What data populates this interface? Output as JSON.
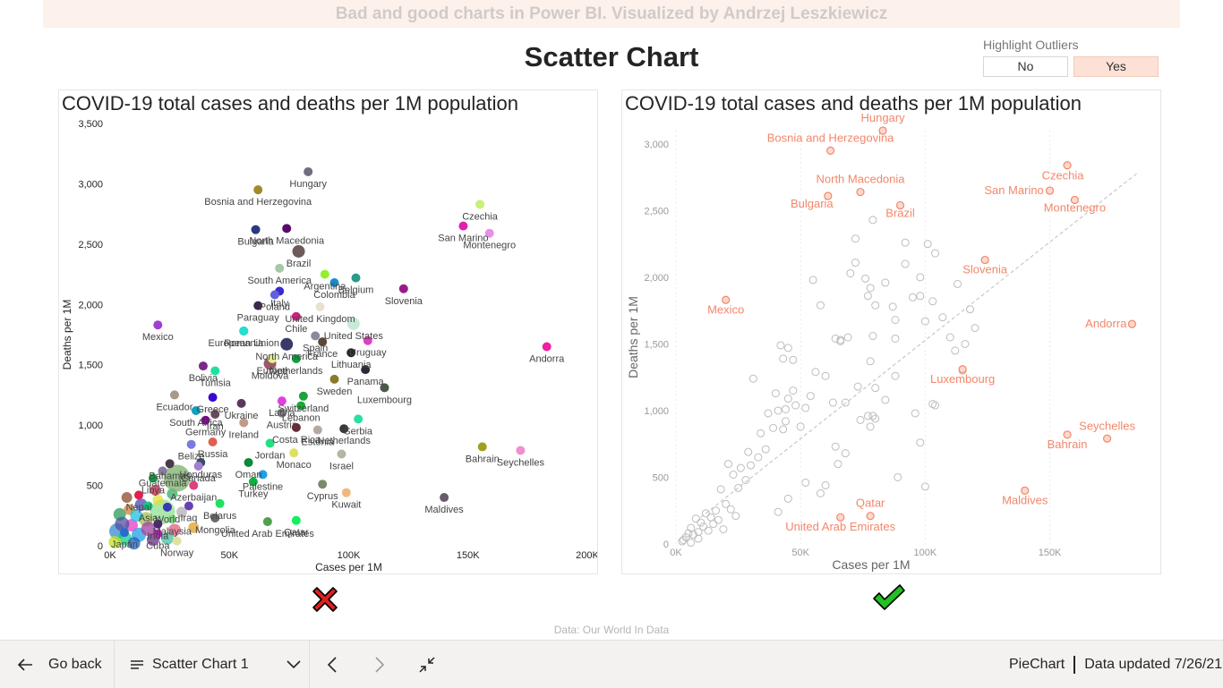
{
  "header": {
    "banner": "Bad and good charts in Power BI. Visualized by Andrzej Leszkiewicz",
    "title": "Scatter Chart"
  },
  "slicer": {
    "label": "Highlight Outliers",
    "options": [
      "No",
      "Yes"
    ],
    "selected": "Yes"
  },
  "colors": {
    "highlight": "#f2876a",
    "muted": "#bdbdbd",
    "bad_mark": "#e02020",
    "good_mark": "#22c022",
    "slicer_active": "#fde1d6"
  },
  "chart_data": [
    {
      "type": "scatter",
      "title": "COVID-19 total cases and deaths per 1M population",
      "xlabel": "Cases per 1M",
      "ylabel": "Deaths per 1M",
      "xlim": [
        0,
        200000
      ],
      "ylim": [
        0,
        3500
      ],
      "xticks": [
        "0K",
        "50K",
        "100K",
        "150K",
        "200K"
      ],
      "yticks": [
        "0",
        "500",
        "1,000",
        "1,500",
        "2,000",
        "2,500",
        "3,000",
        "3,500"
      ],
      "points": [
        {
          "label": "Hungary",
          "x": 83000,
          "y": 3100,
          "color": "#6e6e7e"
        },
        {
          "label": "Bosnia and Herzegovina",
          "x": 62000,
          "y": 2950,
          "color": "#a08a2a"
        },
        {
          "label": "North Macedonia",
          "x": 74000,
          "y": 2630,
          "color": "#5a0a6a"
        },
        {
          "label": "Bulgaria",
          "x": 61000,
          "y": 2620,
          "color": "#2a3a7a"
        },
        {
          "label": "Brazil",
          "x": 79000,
          "y": 2440,
          "color": "#6e5a5a"
        },
        {
          "label": "Czechia",
          "x": 155000,
          "y": 2830,
          "color": "#c8f07a"
        },
        {
          "label": "San Marino",
          "x": 148000,
          "y": 2650,
          "color": "#e020b0"
        },
        {
          "label": "Montenegro",
          "x": 159000,
          "y": 2590,
          "color": "#e890e8"
        },
        {
          "label": "South America",
          "x": 71000,
          "y": 2300,
          "color": "#a8c8a8"
        },
        {
          "label": "Argentina",
          "x": 90000,
          "y": 2250,
          "color": "#90f030"
        },
        {
          "label": "Colombia",
          "x": 94000,
          "y": 2180,
          "color": "#1a8ad0"
        },
        {
          "label": "Belgium",
          "x": 103000,
          "y": 2220,
          "color": "#2a9a8a"
        },
        {
          "label": "Italy",
          "x": 71000,
          "y": 2110,
          "color": "#3a2ad0"
        },
        {
          "label": "Slovenia",
          "x": 123000,
          "y": 2130,
          "color": "#9a1a8a"
        },
        {
          "label": "Poland",
          "x": 69000,
          "y": 2080,
          "color": "#6060e0"
        },
        {
          "label": "Paraguay",
          "x": 62000,
          "y": 1990,
          "color": "#3a2a4a"
        },
        {
          "label": "United Kingdom",
          "x": 88000,
          "y": 1980,
          "color": "#e8e0d0"
        },
        {
          "label": "Mexico",
          "x": 20000,
          "y": 1830,
          "color": "#a040d0"
        },
        {
          "label": "Romania",
          "x": 56000,
          "y": 1780,
          "color": "#a02070"
        },
        {
          "label": "Chile",
          "x": 78000,
          "y": 1900,
          "color": "#d02080"
        },
        {
          "label": "Spain",
          "x": 86000,
          "y": 1740,
          "color": "#8a8a9a"
        },
        {
          "label": "United States",
          "x": 102000,
          "y": 1840,
          "color": "#c8e8d8"
        },
        {
          "label": "European Union",
          "x": 56000,
          "y": 1780,
          "color": "#20e0d0"
        },
        {
          "label": "North America",
          "x": 74000,
          "y": 1670,
          "color": "#3a3a6a"
        },
        {
          "label": "Uruguay",
          "x": 108000,
          "y": 1700,
          "color": "#e040c0"
        },
        {
          "label": "France",
          "x": 89000,
          "y": 1690,
          "color": "#5a4a3a"
        },
        {
          "label": "Lithuania",
          "x": 101000,
          "y": 1600,
          "color": "#2a2a2a"
        },
        {
          "label": "Andorra",
          "x": 183000,
          "y": 1650,
          "color": "#f020a0"
        },
        {
          "label": "Bolivia",
          "x": 39000,
          "y": 1490,
          "color": "#7a2a8a"
        },
        {
          "label": "Moldova",
          "x": 67000,
          "y": 1510,
          "color": "#9a5a6a"
        },
        {
          "label": "Europe",
          "x": 68000,
          "y": 1550,
          "color": "#e0f090"
        },
        {
          "label": "Netherlands",
          "x": 78000,
          "y": 1550,
          "color": "#10a040"
        },
        {
          "label": "Panama",
          "x": 107000,
          "y": 1460,
          "color": "#2a2a3a"
        },
        {
          "label": "Sweden",
          "x": 94000,
          "y": 1380,
          "color": "#8a7a2a"
        },
        {
          "label": "Tunisia",
          "x": 44000,
          "y": 1450,
          "color": "#20e0a0"
        },
        {
          "label": "Luxembourg",
          "x": 115000,
          "y": 1310,
          "color": "#4a5a4a"
        },
        {
          "label": "Ecuador",
          "x": 27000,
          "y": 1250,
          "color": "#a89a8a"
        },
        {
          "label": "Greece",
          "x": 43000,
          "y": 1230,
          "color": "#3a0ad0"
        },
        {
          "label": "Ukraine",
          "x": 55000,
          "y": 1180,
          "color": "#5a3a5a"
        },
        {
          "label": "Latvia",
          "x": 72000,
          "y": 1200,
          "color": "#e040e0"
        },
        {
          "label": "Switzerland",
          "x": 81000,
          "y": 1240,
          "color": "#20a040"
        },
        {
          "label": "Lebanon",
          "x": 80000,
          "y": 1160,
          "color": "#10b030"
        },
        {
          "label": "South Africa",
          "x": 36000,
          "y": 1120,
          "color": "#10a0c0"
        },
        {
          "label": "Iran",
          "x": 44000,
          "y": 1090,
          "color": "#6a4a5a"
        },
        {
          "label": "Austria",
          "x": 72000,
          "y": 1100,
          "color": "#8a8a8a"
        },
        {
          "label": "Serbia",
          "x": 104000,
          "y": 1050,
          "color": "#2ae0a0"
        },
        {
          "label": "Costa Rica",
          "x": 78000,
          "y": 980,
          "color": "#6a2a3a"
        },
        {
          "label": "Netherlands",
          "x": 98000,
          "y": 970,
          "color": "#3a3a3a"
        },
        {
          "label": "Germany",
          "x": 40000,
          "y": 1040,
          "color": "#7a0a8a"
        },
        {
          "label": "Ireland",
          "x": 56000,
          "y": 1020,
          "color": "#c09a8a"
        },
        {
          "label": "Belize",
          "x": 34000,
          "y": 840,
          "color": "#7a7ae0"
        },
        {
          "label": "Russia",
          "x": 43000,
          "y": 860,
          "color": "#e06050"
        },
        {
          "label": "Jordan",
          "x": 67000,
          "y": 850,
          "color": "#20e080"
        },
        {
          "label": "Estonia",
          "x": 87000,
          "y": 960,
          "color": "#b8a8a0"
        },
        {
          "label": "Bahamas",
          "x": 25000,
          "y": 680,
          "color": "#4a3a4a"
        },
        {
          "label": "Honduras",
          "x": 38000,
          "y": 690,
          "color": "#3a4a6a"
        },
        {
          "label": "Oman",
          "x": 58000,
          "y": 690,
          "color": "#0a8a3a"
        },
        {
          "label": "Monaco",
          "x": 77000,
          "y": 770,
          "color": "#e0e060"
        },
        {
          "label": "Israel",
          "x": 97000,
          "y": 760,
          "color": "#b0b8a0"
        },
        {
          "label": "Guatemala",
          "x": 22000,
          "y": 620,
          "color": "#8a7aa0"
        },
        {
          "label": "Canada",
          "x": 37000,
          "y": 660,
          "color": "#a080d0"
        },
        {
          "label": "Palestine",
          "x": 64000,
          "y": 590,
          "color": "#20a0e0"
        },
        {
          "label": "Libya",
          "x": 18000,
          "y": 560,
          "color": "#10a040"
        },
        {
          "label": "Azerbaijan",
          "x": 35000,
          "y": 500,
          "color": "#e04080"
        },
        {
          "label": "Turkey",
          "x": 60000,
          "y": 530,
          "color": "#10b040"
        },
        {
          "label": "Cyprus",
          "x": 89000,
          "y": 510,
          "color": "#7a8a6a"
        },
        {
          "label": "Kuwait",
          "x": 99000,
          "y": 440,
          "color": "#f0b880"
        },
        {
          "label": "Nepal",
          "x": 12000,
          "y": 420,
          "color": "#e02050"
        },
        {
          "label": "Asia",
          "x": 16000,
          "y": 330,
          "color": "#10d080"
        },
        {
          "label": "World",
          "x": 24000,
          "y": 320,
          "color": "#3a3ab0"
        },
        {
          "label": "Iraq",
          "x": 33000,
          "y": 330,
          "color": "#6a40b0"
        },
        {
          "label": "Belarus",
          "x": 46000,
          "y": 350,
          "color": "#20e060"
        },
        {
          "label": "Maldives",
          "x": 140000,
          "y": 400,
          "color": "#6a5a6a"
        },
        {
          "label": "Qatar",
          "x": 78000,
          "y": 210,
          "color": "#10f060"
        },
        {
          "label": "Japan",
          "x": 6000,
          "y": 110,
          "color": "#2a6ad0"
        },
        {
          "label": "India",
          "x": 20000,
          "y": 180,
          "color": "#4a2a6a"
        },
        {
          "label": "Malaysia",
          "x": 26000,
          "y": 220,
          "color": "#80e080"
        },
        {
          "label": "Mongolia",
          "x": 44000,
          "y": 230,
          "color": "#6a6a6a"
        },
        {
          "label": "United Arab Emirates",
          "x": 66000,
          "y": 200,
          "color": "#50a050"
        },
        {
          "label": "Cuba",
          "x": 20000,
          "y": 100,
          "color": "#c020c0"
        },
        {
          "label": "Norway",
          "x": 28000,
          "y": 40,
          "color": "#e0e0a0"
        },
        {
          "label": "Bahrain",
          "x": 156000,
          "y": 820,
          "color": "#a0a020"
        },
        {
          "label": "Seychelles",
          "x": 172000,
          "y": 790,
          "color": "#f090d0"
        }
      ]
    },
    {
      "type": "scatter",
      "title": "COVID-19 total cases and deaths per 1M population",
      "xlabel": "Cases per 1M",
      "ylabel": "Deaths per 1M",
      "xlim": [
        0,
        185000
      ],
      "ylim": [
        0,
        3100
      ],
      "xticks": [
        "0K",
        "50K",
        "100K",
        "150K"
      ],
      "yticks": [
        "0",
        "500",
        "1,000",
        "1,500",
        "2,000",
        "2,500",
        "3,000"
      ],
      "trendline": [
        [
          10000,
          200
        ],
        [
          185000,
          2780
        ]
      ],
      "outliers": [
        {
          "label": "Hungary",
          "x": 83000,
          "y": 3100
        },
        {
          "label": "Bosnia and Herzegovina",
          "x": 62000,
          "y": 2950
        },
        {
          "label": "North Macedonia",
          "x": 74000,
          "y": 2640
        },
        {
          "label": "Bulgaria",
          "x": 61000,
          "y": 2610
        },
        {
          "label": "Brazil",
          "x": 90000,
          "y": 2540
        },
        {
          "label": "Czechia",
          "x": 157000,
          "y": 2840
        },
        {
          "label": "San Marino",
          "x": 150000,
          "y": 2650
        },
        {
          "label": "Montenegro",
          "x": 160000,
          "y": 2580
        },
        {
          "label": "Slovenia",
          "x": 124000,
          "y": 2130
        },
        {
          "label": "Mexico",
          "x": 20000,
          "y": 1830
        },
        {
          "label": "Andorra",
          "x": 183000,
          "y": 1650
        },
        {
          "label": "Luxembourg",
          "x": 115000,
          "y": 1310
        },
        {
          "label": "Seychelles",
          "x": 173000,
          "y": 790
        },
        {
          "label": "Bahrain",
          "x": 157000,
          "y": 820
        },
        {
          "label": "Maldives",
          "x": 140000,
          "y": 400
        },
        {
          "label": "Qatar",
          "x": 78000,
          "y": 210
        },
        {
          "label": "United Arab Emirates",
          "x": 66000,
          "y": 200
        }
      ],
      "points": [
        [
          64000,
          1540
        ],
        [
          66000,
          1520
        ],
        [
          69000,
          1550
        ],
        [
          78000,
          1920
        ],
        [
          80000,
          1790
        ],
        [
          84000,
          1960
        ],
        [
          87000,
          1780
        ],
        [
          88000,
          1680
        ],
        [
          92000,
          2260
        ],
        [
          95000,
          1850
        ],
        [
          100000,
          1670
        ],
        [
          103000,
          1820
        ],
        [
          107000,
          1700
        ],
        [
          58000,
          1790
        ],
        [
          55000,
          1980
        ],
        [
          70000,
          2030
        ],
        [
          76000,
          1990
        ],
        [
          77000,
          1860
        ],
        [
          72000,
          2290
        ],
        [
          79000,
          2430
        ],
        [
          72000,
          2110
        ],
        [
          104000,
          2180
        ],
        [
          98000,
          2000
        ],
        [
          88000,
          1540
        ],
        [
          79000,
          1560
        ],
        [
          78000,
          1370
        ],
        [
          68000,
          1060
        ],
        [
          73000,
          1180
        ],
        [
          77000,
          960
        ],
        [
          79000,
          960
        ],
        [
          63000,
          1060
        ],
        [
          56000,
          1290
        ],
        [
          60000,
          1260
        ],
        [
          54000,
          1110
        ],
        [
          45000,
          1470
        ],
        [
          43000,
          1390
        ],
        [
          47000,
          1380
        ],
        [
          88000,
          1260
        ],
        [
          80000,
          1170
        ],
        [
          84000,
          1080
        ],
        [
          103000,
          1050
        ],
        [
          104000,
          1040
        ],
        [
          96000,
          980
        ],
        [
          98000,
          760
        ],
        [
          100000,
          430
        ],
        [
          89000,
          500
        ],
        [
          78000,
          880
        ],
        [
          80000,
          940
        ],
        [
          74000,
          930
        ],
        [
          64000,
          730
        ],
        [
          68000,
          680
        ],
        [
          60000,
          440
        ],
        [
          66000,
          1530
        ],
        [
          52000,
          1020
        ],
        [
          48000,
          1040
        ],
        [
          45000,
          1090
        ],
        [
          44000,
          1010
        ],
        [
          47000,
          1150
        ],
        [
          40000,
          1130
        ],
        [
          42000,
          1490
        ],
        [
          31000,
          1240
        ],
        [
          37000,
          980
        ],
        [
          39000,
          870
        ],
        [
          41000,
          1000
        ],
        [
          44000,
          920
        ],
        [
          43000,
          860
        ],
        [
          34000,
          830
        ],
        [
          36000,
          710
        ],
        [
          33000,
          650
        ],
        [
          29000,
          690
        ],
        [
          26000,
          570
        ],
        [
          28000,
          480
        ],
        [
          30000,
          590
        ],
        [
          21000,
          600
        ],
        [
          23000,
          520
        ],
        [
          25000,
          420
        ],
        [
          18000,
          410
        ],
        [
          20000,
          300
        ],
        [
          22000,
          260
        ],
        [
          24000,
          210
        ],
        [
          16000,
          250
        ],
        [
          14000,
          200
        ],
        [
          12000,
          230
        ],
        [
          10000,
          160
        ],
        [
          8000,
          190
        ],
        [
          6000,
          120
        ],
        [
          5000,
          80
        ],
        [
          4000,
          50
        ],
        [
          3000,
          30
        ],
        [
          7000,
          70
        ],
        [
          9000,
          90
        ],
        [
          11000,
          130
        ],
        [
          13000,
          100
        ],
        [
          15000,
          150
        ],
        [
          17000,
          180
        ],
        [
          19000,
          110
        ],
        [
          2500,
          20
        ],
        [
          6000,
          10
        ],
        [
          9000,
          40
        ],
        [
          41000,
          240
        ],
        [
          45000,
          340
        ],
        [
          50000,
          880
        ],
        [
          52000,
          460
        ],
        [
          58000,
          380
        ],
        [
          65000,
          600
        ],
        [
          92000,
          2100
        ],
        [
          98000,
          1860
        ],
        [
          101000,
          2250
        ],
        [
          112000,
          1450
        ],
        [
          110000,
          1550
        ],
        [
          113000,
          1950
        ],
        [
          120000,
          1620
        ],
        [
          118000,
          1760
        ],
        [
          115000,
          1300
        ],
        [
          116000,
          1500
        ]
      ]
    }
  ],
  "verdicts": {
    "left": "cross-icon",
    "right": "check-icon"
  },
  "footer": {
    "source": "Data: Our World In Data"
  },
  "bottom_bar": {
    "back_label": "Go back",
    "page_label": "Scatter Chart 1",
    "app_label": "PieChart",
    "updated_label": "Data updated 7/26/21"
  }
}
